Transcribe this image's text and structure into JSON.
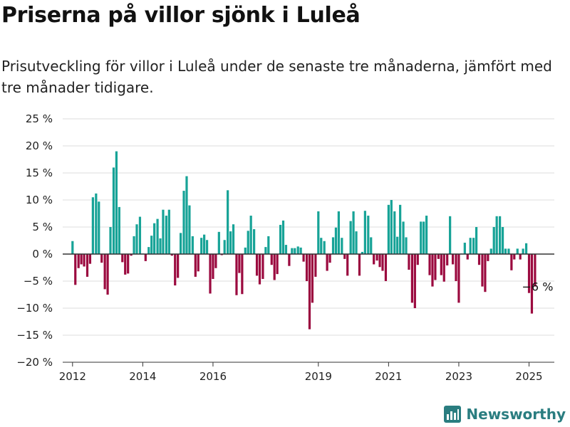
{
  "header": {
    "title": "Priserna på villor sjönk i Luleå",
    "subtitle": "Prisutveckling för villor i Luleå under de senaste tre månaderna, jämfört med tre månader tidigare."
  },
  "brand": {
    "name": "Newsworthy"
  },
  "colors": {
    "positive": "#17a397",
    "negative": "#9b0a3f",
    "zero_line": "#333333",
    "grid": "#dddddd",
    "logo": "#2a7d80"
  },
  "chart_data": {
    "type": "bar",
    "ylim": [
      -20,
      25
    ],
    "yticks": [
      {
        "value": 25,
        "label": "25 %"
      },
      {
        "value": 20,
        "label": "20 %"
      },
      {
        "value": 15,
        "label": "15 %"
      },
      {
        "value": 10,
        "label": "10 %"
      },
      {
        "value": 5,
        "label": "5 %"
      },
      {
        "value": 0,
        "label": "0 %"
      },
      {
        "value": -5,
        "label": "−5 %"
      },
      {
        "value": -10,
        "label": "−10 %"
      },
      {
        "value": -15,
        "label": "−15 %"
      },
      {
        "value": -20,
        "label": "−20 %"
      }
    ],
    "xlim": [
      2011.72,
      2025.72
    ],
    "xticks": [
      {
        "value": 2012,
        "label": "2012"
      },
      {
        "value": 2014,
        "label": "2014"
      },
      {
        "value": 2016,
        "label": "2016"
      },
      {
        "value": 2019,
        "label": "2019"
      },
      {
        "value": 2021,
        "label": "2021"
      },
      {
        "value": 2023,
        "label": "2023"
      },
      {
        "value": 2025,
        "label": "2025"
      }
    ],
    "grid": true,
    "x": [
      2012.0,
      2012.08,
      2012.17,
      2012.25,
      2012.33,
      2012.42,
      2012.5,
      2012.58,
      2012.67,
      2012.75,
      2012.83,
      2012.92,
      2013.0,
      2013.08,
      2013.17,
      2013.25,
      2013.33,
      2013.42,
      2013.5,
      2013.58,
      2013.67,
      2013.75,
      2013.83,
      2013.92,
      2014.0,
      2014.08,
      2014.17,
      2014.25,
      2014.33,
      2014.42,
      2014.5,
      2014.58,
      2014.67,
      2014.75,
      2014.83,
      2014.92,
      2015.0,
      2015.08,
      2015.17,
      2015.25,
      2015.33,
      2015.42,
      2015.5,
      2015.58,
      2015.67,
      2015.75,
      2015.83,
      2015.92,
      2016.0,
      2016.08,
      2016.17,
      2016.25,
      2016.33,
      2016.42,
      2016.5,
      2016.58,
      2016.67,
      2016.75,
      2016.83,
      2016.92,
      2017.0,
      2017.08,
      2017.17,
      2017.25,
      2017.33,
      2017.42,
      2017.5,
      2017.58,
      2017.67,
      2017.75,
      2017.83,
      2017.92,
      2018.0,
      2018.08,
      2018.17,
      2018.25,
      2018.33,
      2018.42,
      2018.5,
      2018.58,
      2018.67,
      2018.75,
      2018.83,
      2018.92,
      2019.0,
      2019.08,
      2019.17,
      2019.25,
      2019.33,
      2019.42,
      2019.5,
      2019.58,
      2019.67,
      2019.75,
      2019.83,
      2019.92,
      2020.0,
      2020.08,
      2020.17,
      2020.25,
      2020.33,
      2020.42,
      2020.5,
      2020.58,
      2020.67,
      2020.75,
      2020.83,
      2020.92,
      2021.0,
      2021.08,
      2021.17,
      2021.25,
      2021.33,
      2021.42,
      2021.5,
      2021.58,
      2021.67,
      2021.75,
      2021.83,
      2021.92,
      2022.0,
      2022.08,
      2022.17,
      2022.25,
      2022.33,
      2022.42,
      2022.5,
      2022.58,
      2022.67,
      2022.75,
      2022.83,
      2022.92,
      2023.0,
      2023.08,
      2023.17,
      2023.25,
      2023.33,
      2023.42,
      2023.5,
      2023.58,
      2023.67,
      2023.75,
      2023.83,
      2023.92,
      2024.0,
      2024.08,
      2024.17,
      2024.25,
      2024.33,
      2024.42,
      2024.5,
      2024.58,
      2024.67,
      2024.75,
      2024.83,
      2024.92,
      2025.0,
      2025.08,
      2025.17,
      2025.25,
      2025.33
    ],
    "values": [
      2.4,
      -5.7,
      -2.6,
      -1.9,
      -2.3,
      -4.2,
      -1.8,
      10.5,
      11.2,
      9.7,
      -1.6,
      -6.5,
      -7.5,
      5.0,
      16.0,
      19.0,
      8.7,
      -1.5,
      -3.8,
      -3.6,
      -0.3,
      3.3,
      5.5,
      6.9,
      0.1,
      -1.3,
      1.3,
      3.4,
      5.7,
      6.5,
      2.9,
      8.2,
      7.1,
      8.2,
      -0.3,
      -5.8,
      -4.4,
      3.9,
      11.7,
      14.4,
      9.0,
      3.3,
      -4.2,
      -3.2,
      3.0,
      3.6,
      2.6,
      -7.3,
      -4.6,
      -2.6,
      4.1,
      -0.2,
      2.6,
      11.8,
      4.2,
      5.5,
      -7.6,
      -3.5,
      -7.4,
      1.2,
      4.3,
      7.1,
      4.6,
      -4.0,
      -5.6,
      -4.6,
      1.3,
      3.3,
      -2.0,
      -4.8,
      -3.7,
      5.4,
      6.2,
      1.7,
      -2.2,
      1.1,
      1.1,
      1.4,
      1.2,
      -1.4,
      -5.0,
      -13.9,
      -9.0,
      -4.2,
      7.9,
      3.0,
      2.4,
      -3.1,
      -1.6,
      3.1,
      4.9,
      7.9,
      3.0,
      -0.9,
      -4.0,
      6.1,
      7.9,
      4.2,
      -4.0,
      0.4,
      8.0,
      7.1,
      3.1,
      -1.9,
      -1.2,
      -2.4,
      -3.1,
      -5.0,
      9.1,
      10.0,
      7.9,
      3.2,
      9.1,
      6.0,
      3.1,
      -2.9,
      -9.0,
      -10.0,
      -2.0,
      6.0,
      6.0,
      7.1,
      -3.9,
      -6.0,
      -4.8,
      -0.9,
      -3.9,
      -5.1,
      -2.1,
      7.0,
      -1.9,
      -5.0,
      -9.0,
      0.1,
      2.1,
      -1.0,
      3.0,
      3.0,
      5.0,
      -2.0,
      -6.0,
      -7.0,
      -1.3,
      1.0,
      5.0,
      7.0,
      7.0,
      5.0,
      1.0,
      1.0,
      -3.0,
      -1.0,
      1.0,
      -1.0,
      1.0,
      2.0,
      -7.2,
      -11.0,
      -6.0,
      0.0,
      0.0
    ],
    "annotations": [
      {
        "x": 2025.08,
        "y": -6,
        "text": "−6 %"
      }
    ]
  }
}
